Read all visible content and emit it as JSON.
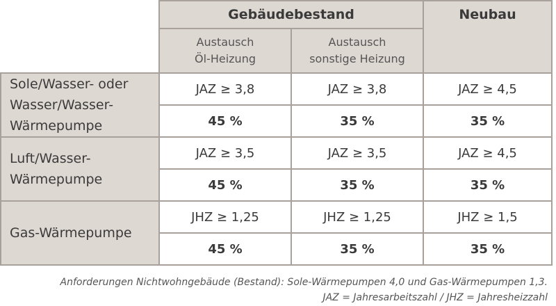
{
  "header": {
    "group_existing": "Gebäudebestand",
    "group_new": "Neubau",
    "sub_oil": [
      "Austausch",
      "Öl-Heizung"
    ],
    "sub_other": [
      "Austausch",
      "sonstige Heizung"
    ]
  },
  "rows": [
    {
      "label": [
        "Sole/Wasser- oder",
        "Wasser/Wasser-",
        "Wärmepumpe"
      ],
      "requirement": [
        "JAZ ≥ 3,8",
        "JAZ ≥ 3,8",
        "JAZ ≥ 4,5"
      ],
      "funding": [
        "45 %",
        "35 %",
        "35 %"
      ]
    },
    {
      "label": [
        "Luft/Wasser-",
        "Wärmepumpe"
      ],
      "requirement": [
        "JAZ ≥ 3,5",
        "JAZ ≥ 3,5",
        "JAZ ≥ 4,5"
      ],
      "funding": [
        "45 %",
        "35 %",
        "35 %"
      ]
    },
    {
      "label": [
        "Gas-Wärmepumpe"
      ],
      "requirement": [
        "JHZ ≥ 1,25",
        "JHZ ≥ 1,25",
        "JHZ ≥ 1,5"
      ],
      "funding": [
        "45 %",
        "35 %",
        "35 %"
      ]
    }
  ],
  "footnote": {
    "line1": "Anforderungen Nichtwohngebäude (Bestand): Sole-Wärmepumpen 4,0 und Gas-Wärmepumpen 1,3.",
    "line2": "JAZ = Jahresarbeitszahl / JHZ = Jahresheizzahl"
  }
}
